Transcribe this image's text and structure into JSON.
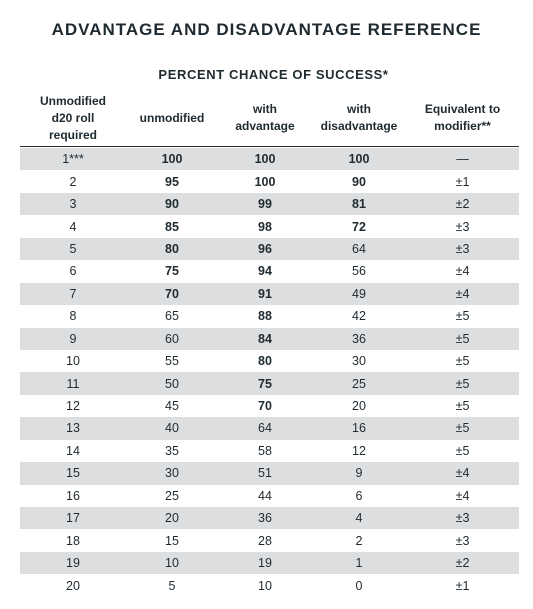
{
  "title": "ADVANTAGE AND DISADVANTAGE REFERENCE",
  "subtitle": "PERCENT CHANCE OF SUCCESS*",
  "columns": [
    "Unmodified\nd20 roll\nrequired",
    "unmodified",
    "with\nadvantage",
    "with\ndisadvantage",
    "Equivalent to\nmodifier**"
  ],
  "rows": [
    {
      "roll": "1***",
      "unmodified": "100",
      "advantage": "100",
      "disadvantage": "100",
      "modifier": "—",
      "bold": [
        false,
        true,
        true,
        true,
        false
      ]
    },
    {
      "roll": "2",
      "unmodified": "95",
      "advantage": "100",
      "disadvantage": "90",
      "modifier": "±1",
      "bold": [
        false,
        true,
        true,
        true,
        false
      ]
    },
    {
      "roll": "3",
      "unmodified": "90",
      "advantage": "99",
      "disadvantage": "81",
      "modifier": "±2",
      "bold": [
        false,
        true,
        true,
        true,
        false
      ]
    },
    {
      "roll": "4",
      "unmodified": "85",
      "advantage": "98",
      "disadvantage": "72",
      "modifier": "±3",
      "bold": [
        false,
        true,
        true,
        true,
        false
      ]
    },
    {
      "roll": "5",
      "unmodified": "80",
      "advantage": "96",
      "disadvantage": "64",
      "modifier": "±3",
      "bold": [
        false,
        true,
        true,
        false,
        false
      ]
    },
    {
      "roll": "6",
      "unmodified": "75",
      "advantage": "94",
      "disadvantage": "56",
      "modifier": "±4",
      "bold": [
        false,
        true,
        true,
        false,
        false
      ]
    },
    {
      "roll": "7",
      "unmodified": "70",
      "advantage": "91",
      "disadvantage": "49",
      "modifier": "±4",
      "bold": [
        false,
        true,
        true,
        false,
        false
      ]
    },
    {
      "roll": "8",
      "unmodified": "65",
      "advantage": "88",
      "disadvantage": "42",
      "modifier": "±5",
      "bold": [
        false,
        false,
        true,
        false,
        false
      ]
    },
    {
      "roll": "9",
      "unmodified": "60",
      "advantage": "84",
      "disadvantage": "36",
      "modifier": "±5",
      "bold": [
        false,
        false,
        true,
        false,
        false
      ]
    },
    {
      "roll": "10",
      "unmodified": "55",
      "advantage": "80",
      "disadvantage": "30",
      "modifier": "±5",
      "bold": [
        false,
        false,
        true,
        false,
        false
      ]
    },
    {
      "roll": "11",
      "unmodified": "50",
      "advantage": "75",
      "disadvantage": "25",
      "modifier": "±5",
      "bold": [
        false,
        false,
        true,
        false,
        false
      ]
    },
    {
      "roll": "12",
      "unmodified": "45",
      "advantage": "70",
      "disadvantage": "20",
      "modifier": "±5",
      "bold": [
        false,
        false,
        true,
        false,
        false
      ]
    },
    {
      "roll": "13",
      "unmodified": "40",
      "advantage": "64",
      "disadvantage": "16",
      "modifier": "±5",
      "bold": [
        false,
        false,
        false,
        false,
        false
      ]
    },
    {
      "roll": "14",
      "unmodified": "35",
      "advantage": "58",
      "disadvantage": "12",
      "modifier": "±5",
      "bold": [
        false,
        false,
        false,
        false,
        false
      ]
    },
    {
      "roll": "15",
      "unmodified": "30",
      "advantage": "51",
      "disadvantage": "9",
      "modifier": "±4",
      "bold": [
        false,
        false,
        false,
        false,
        false
      ]
    },
    {
      "roll": "16",
      "unmodified": "25",
      "advantage": "44",
      "disadvantage": "6",
      "modifier": "±4",
      "bold": [
        false,
        false,
        false,
        false,
        false
      ]
    },
    {
      "roll": "17",
      "unmodified": "20",
      "advantage": "36",
      "disadvantage": "4",
      "modifier": "±3",
      "bold": [
        false,
        false,
        false,
        false,
        false
      ]
    },
    {
      "roll": "18",
      "unmodified": "15",
      "advantage": "28",
      "disadvantage": "2",
      "modifier": "±3",
      "bold": [
        false,
        false,
        false,
        false,
        false
      ]
    },
    {
      "roll": "19",
      "unmodified": "10",
      "advantage": "19",
      "disadvantage": "1",
      "modifier": "±2",
      "bold": [
        false,
        false,
        false,
        false,
        false
      ]
    },
    {
      "roll": "20",
      "unmodified": "5",
      "advantage": "10",
      "disadvantage": "0",
      "modifier": "±1",
      "bold": [
        false,
        false,
        false,
        false,
        false
      ]
    }
  ]
}
